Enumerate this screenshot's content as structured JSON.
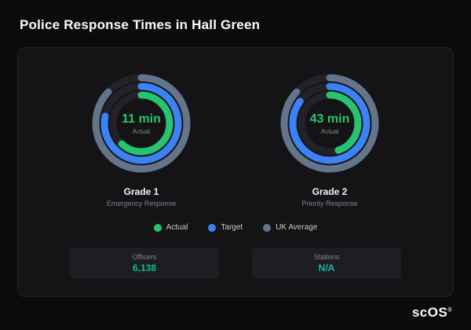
{
  "page_title": "Police Response Times in Hall Green",
  "chart_data": {
    "type": "gauge",
    "title": "Police Response Times in Hall Green",
    "legend": [
      {
        "name": "Actual",
        "color": "#27c46f"
      },
      {
        "name": "Target",
        "color": "#3b82f6"
      },
      {
        "name": "UK Average",
        "color": "#64748b"
      }
    ],
    "legend_position": "bottom-center",
    "gauges": [
      {
        "value_label": "11 min",
        "value_sublabel": "Actual",
        "title": "Grade 1",
        "subtitle": "Emergency Response",
        "actual_pct": 0.62,
        "target_pct": 0.78,
        "uk_average_pct": 0.87
      },
      {
        "value_label": "43 min",
        "value_sublabel": "Actual",
        "title": "Grade 2",
        "subtitle": "Priority Response",
        "actual_pct": 0.45,
        "target_pct": 0.85,
        "uk_average_pct": 0.87
      }
    ]
  },
  "stats": [
    {
      "label": "Officers",
      "value": "6,138"
    },
    {
      "label": "Stations",
      "value": "N/A"
    }
  ],
  "colors": {
    "value_text": "#27c46f",
    "stat_value_text": "#16b89a",
    "card_bg": "#141417",
    "page_bg": "#0b0b0d",
    "track": "#222228"
  },
  "brand": {
    "logo_text": "scOS",
    "registered_mark": "®"
  }
}
